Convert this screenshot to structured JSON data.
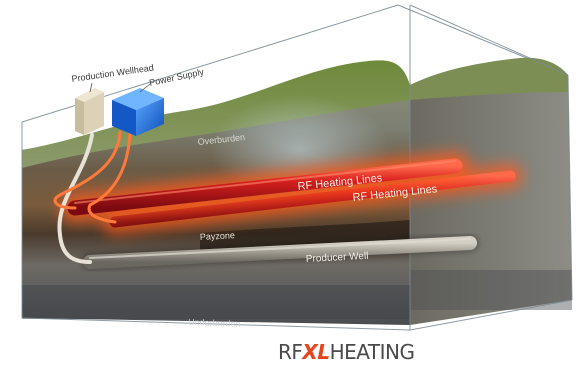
{
  "labels": {
    "production_wellhead": "Production Wellhead",
    "power_supply": "Power Supply",
    "overburden": "Overburden",
    "rf_heating_lines_1": "RF Heating Lines",
    "rf_heating_lines_2": "RF Heating Lines",
    "payzone": "Payzone",
    "producer_well": "Producer Well",
    "underburden": "Underburden"
  },
  "brand": {
    "prefix": "RF",
    "accent": "XL",
    "suffix": "HEATING"
  },
  "colors": {
    "heating_line": "#c0141b",
    "heating_glow": "#ff5a1a",
    "producer_pipe": "#9a968c",
    "power_supply_box": "#1e6fd9",
    "wellhead_box": "#d8cdb4",
    "brand_accent": "#e8451c"
  }
}
